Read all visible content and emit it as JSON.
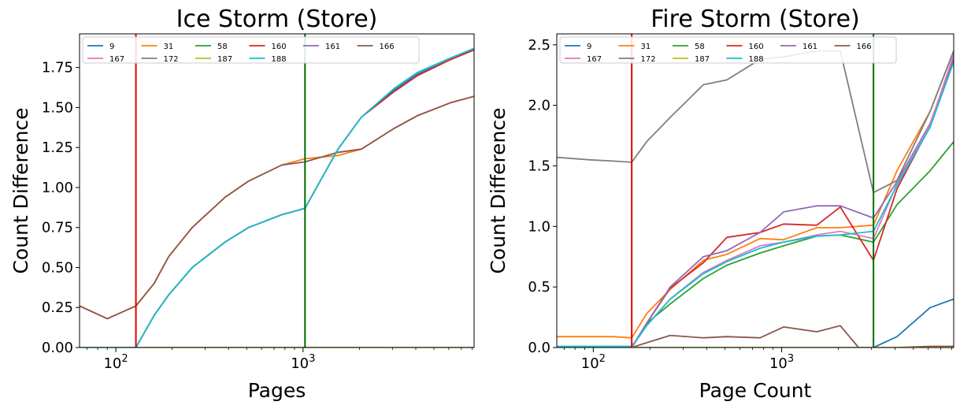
{
  "chart_data": [
    {
      "type": "line",
      "title": "Ice Storm (Store)",
      "xlabel": "Pages",
      "ylabel": "Count Difference",
      "xscale": "log",
      "xlim": [
        64,
        8192
      ],
      "ylim": [
        0,
        1.96
      ],
      "yticks": [
        "0.00",
        "0.25",
        "0.50",
        "0.75",
        "1.00",
        "1.25",
        "1.50",
        "1.75"
      ],
      "ytick_values": [
        0,
        0.25,
        0.5,
        0.75,
        1.0,
        1.25,
        1.5,
        1.75
      ],
      "xticks": [
        {
          "value": 100,
          "base": "10",
          "exp": "2"
        },
        {
          "value": 1000,
          "base": "10",
          "exp": "3"
        }
      ],
      "vlines": [
        {
          "x": 128,
          "color": "#e00000"
        },
        {
          "x": 1024,
          "color": "#007000"
        }
      ],
      "legend": {
        "placement": "top-left",
        "columns": 6
      },
      "series": [
        {
          "name": "9",
          "color": "#1f77b4",
          "x": [
            64,
            90,
            128,
            160,
            192,
            256,
            384,
            512,
            768,
            1024,
            1536,
            2048,
            3072,
            4096,
            6144,
            8192
          ],
          "y": [
            0,
            0,
            0,
            0.2,
            0.33,
            0.5,
            0.66,
            0.75,
            0.83,
            0.87,
            1.24,
            1.44,
            1.61,
            1.71,
            1.8,
            1.86
          ]
        },
        {
          "name": "31",
          "color": "#ff7f0e",
          "x": [
            64,
            90,
            128,
            160,
            192,
            256,
            384,
            512,
            768,
            1024,
            1536,
            2048,
            3072,
            4096,
            6144,
            8192
          ],
          "y": [
            0.26,
            0.18,
            0.26,
            0.4,
            0.57,
            0.75,
            0.94,
            1.04,
            1.14,
            1.18,
            1.2,
            1.24,
            1.37,
            1.45,
            1.53,
            1.57
          ]
        },
        {
          "name": "58",
          "color": "#2ca02c",
          "x": [
            64,
            8192
          ],
          "y": [
            0,
            0
          ]
        },
        {
          "name": "160",
          "color": "#d62728",
          "x": [
            64,
            90,
            128,
            160,
            192,
            256,
            384,
            512,
            768,
            1024,
            1536,
            2048,
            3072,
            4096,
            6144,
            8192
          ],
          "y": [
            0,
            0,
            0,
            0.2,
            0.33,
            0.5,
            0.66,
            0.75,
            0.83,
            0.87,
            1.24,
            1.44,
            1.6,
            1.7,
            1.8,
            1.86
          ]
        },
        {
          "name": "161",
          "color": "#9467bd",
          "x": [
            64,
            8192
          ],
          "y": [
            0,
            0
          ]
        },
        {
          "name": "166",
          "color": "#8c564b",
          "x": [
            64,
            90,
            128,
            160,
            192,
            256,
            384,
            512,
            768,
            1024,
            1536,
            2048,
            3072,
            4096,
            6144,
            8192
          ],
          "y": [
            0.26,
            0.18,
            0.26,
            0.4,
            0.57,
            0.75,
            0.94,
            1.04,
            1.14,
            1.16,
            1.22,
            1.24,
            1.37,
            1.45,
            1.53,
            1.57
          ]
        },
        {
          "name": "167",
          "color": "#e377c2",
          "x": [
            64,
            8192
          ],
          "y": [
            0,
            0
          ]
        },
        {
          "name": "172",
          "color": "#7f7f7f",
          "x": [
            64,
            8192
          ],
          "y": [
            0,
            0
          ]
        },
        {
          "name": "187",
          "color": "#bcbd22",
          "x": [
            64,
            8192
          ],
          "y": [
            0,
            0
          ]
        },
        {
          "name": "188",
          "color": "#17becf",
          "x": [
            64,
            90,
            128,
            160,
            192,
            256,
            384,
            512,
            768,
            1024,
            1536,
            2048,
            3072,
            4096,
            6144,
            8192
          ],
          "y": [
            0,
            0,
            0,
            0.2,
            0.33,
            0.5,
            0.66,
            0.75,
            0.83,
            0.87,
            1.24,
            1.44,
            1.62,
            1.72,
            1.81,
            1.87
          ]
        }
      ]
    },
    {
      "type": "line",
      "title": "Fire Storm (Store)",
      "xlabel": "Page Count",
      "ylabel": "Count Difference",
      "xscale": "log",
      "xlim": [
        64,
        8192
      ],
      "ylim": [
        0,
        2.59
      ],
      "yticks": [
        "0.0",
        "0.5",
        "1.0",
        "1.5",
        "2.0",
        "2.5"
      ],
      "ytick_values": [
        0,
        0.5,
        1.0,
        1.5,
        2.0,
        2.5
      ],
      "xticks": [
        {
          "value": 100,
          "base": "10",
          "exp": "2"
        },
        {
          "value": 1000,
          "base": "10",
          "exp": "3"
        }
      ],
      "vlines": [
        {
          "x": 160,
          "color": "#e00000"
        },
        {
          "x": 3072,
          "color": "#007000"
        }
      ],
      "legend": {
        "placement": "top-left",
        "columns": 6
      },
      "series": [
        {
          "name": "9",
          "color": "#1f77b4",
          "x": [
            64,
            160,
            3072,
            4096,
            6144,
            8192
          ],
          "y": [
            0,
            0,
            0,
            0.09,
            0.33,
            0.4
          ]
        },
        {
          "name": "31",
          "color": "#ff7f0e",
          "x": [
            64,
            96,
            128,
            160,
            192,
            256,
            384,
            512,
            768,
            1024,
            1536,
            2048,
            3072,
            4096,
            6144,
            8192
          ],
          "y": [
            0.09,
            0.09,
            0.09,
            0.08,
            0.28,
            0.48,
            0.72,
            0.77,
            0.9,
            0.89,
            0.99,
            0.99,
            1.01,
            1.46,
            1.95,
            2.45
          ]
        },
        {
          "name": "58",
          "color": "#2ca02c",
          "x": [
            64,
            160,
            192,
            256,
            384,
            512,
            768,
            1024,
            1536,
            2048,
            3072,
            4096,
            6144,
            8192
          ],
          "y": [
            0,
            0,
            0.2,
            0.36,
            0.57,
            0.68,
            0.78,
            0.84,
            0.92,
            0.93,
            0.87,
            1.18,
            1.46,
            1.7
          ]
        },
        {
          "name": "160",
          "color": "#d62728",
          "x": [
            64,
            160,
            192,
            256,
            384,
            512,
            768,
            1024,
            1536,
            2048,
            3072,
            4096,
            6144,
            8192
          ],
          "y": [
            0,
            0,
            0.2,
            0.49,
            0.7,
            0.91,
            0.95,
            1.02,
            1.01,
            1.16,
            0.72,
            1.31,
            1.83,
            2.39
          ]
        },
        {
          "name": "161",
          "color": "#9467bd",
          "x": [
            64,
            160,
            192,
            256,
            384,
            512,
            768,
            1024,
            1536,
            2048,
            3072,
            4096,
            6144,
            8192
          ],
          "y": [
            0,
            0,
            0.2,
            0.5,
            0.75,
            0.8,
            0.95,
            1.12,
            1.17,
            1.17,
            1.07,
            1.37,
            1.85,
            2.4
          ]
        },
        {
          "name": "166",
          "color": "#8c564b",
          "x": [
            64,
            160,
            192,
            256,
            384,
            512,
            768,
            1024,
            1536,
            2048,
            2560,
            3072,
            4096,
            6144,
            8192
          ],
          "y": [
            0,
            0,
            0.04,
            0.1,
            0.08,
            0.09,
            0.08,
            0.17,
            0.13,
            0.18,
            0,
            0,
            0,
            0.01,
            0.01
          ]
        },
        {
          "name": "167",
          "color": "#e377c2",
          "x": [
            64,
            160,
            192,
            256,
            384,
            512,
            768,
            1024,
            1536,
            2048,
            3072,
            4096,
            6144,
            8192
          ],
          "y": [
            0,
            0,
            0.18,
            0.4,
            0.62,
            0.72,
            0.84,
            0.87,
            0.93,
            0.96,
            0.9,
            1.35,
            1.84,
            2.42
          ]
        },
        {
          "name": "172",
          "color": "#7f7f7f",
          "x": [
            64,
            96,
            128,
            160,
            192,
            256,
            384,
            512,
            768,
            1024,
            1536,
            2048,
            3072,
            4096,
            6144,
            8192
          ],
          "y": [
            1.57,
            1.55,
            1.54,
            1.53,
            1.7,
            1.9,
            2.17,
            2.21,
            2.38,
            2.4,
            2.45,
            2.45,
            1.28,
            1.38,
            1.95,
            2.45
          ]
        },
        {
          "name": "187",
          "color": "#bcbd22",
          "x": [
            64,
            8192
          ],
          "y": [
            0,
            0
          ]
        },
        {
          "name": "188",
          "color": "#17becf",
          "x": [
            64,
            160,
            192,
            256,
            384,
            512,
            768,
            1024,
            1536,
            2048,
            3072,
            4096,
            6144,
            8192
          ],
          "y": [
            0.01,
            0.01,
            0.18,
            0.4,
            0.61,
            0.71,
            0.82,
            0.87,
            0.92,
            0.93,
            0.96,
            1.34,
            1.82,
            2.36
          ]
        }
      ]
    }
  ]
}
